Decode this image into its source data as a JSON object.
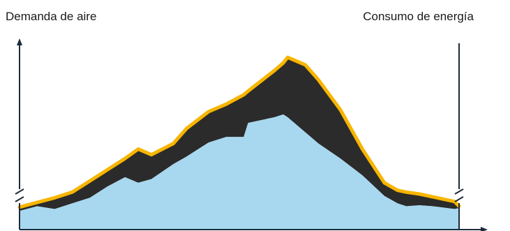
{
  "chart_data": {
    "type": "area",
    "title": "",
    "y_left_label": "Demanda de aire",
    "y_right_label": "Consumo de energía",
    "x_label": "",
    "axis_breaks": true,
    "grid": false,
    "legend": "none",
    "colors": {
      "demand_fill": "#a8d8ef",
      "gap_fill": "#2b2b2b",
      "energy_line": "#f7b500",
      "axis": "#1c2b3a"
    },
    "x": [
      0,
      4,
      8,
      12,
      16,
      20,
      24,
      27,
      30,
      35,
      38,
      43,
      47,
      51,
      52,
      58,
      60,
      61,
      65,
      68,
      73,
      78,
      83,
      86,
      88,
      91,
      94,
      99,
      100
    ],
    "series": [
      {
        "key": "demand",
        "values": [
          0,
          5,
          2,
          8,
          14,
          26,
          36,
          30,
          34,
          50,
          58,
          73,
          79,
          79,
          94,
          100,
          103,
          100,
          84,
          72,
          56,
          38,
          16,
          8,
          5,
          6,
          5,
          2,
          3
        ]
      },
      {
        "key": "energy",
        "values": [
          4,
          9,
          14,
          20,
          32,
          44,
          56,
          66,
          60,
          72,
          88,
          106,
          114,
          124,
          128,
          150,
          158,
          164,
          156,
          140,
          108,
          66,
          30,
          22,
          20,
          18,
          15,
          10,
          5
        ]
      }
    ],
    "ylim": [
      -20,
      188
    ]
  }
}
